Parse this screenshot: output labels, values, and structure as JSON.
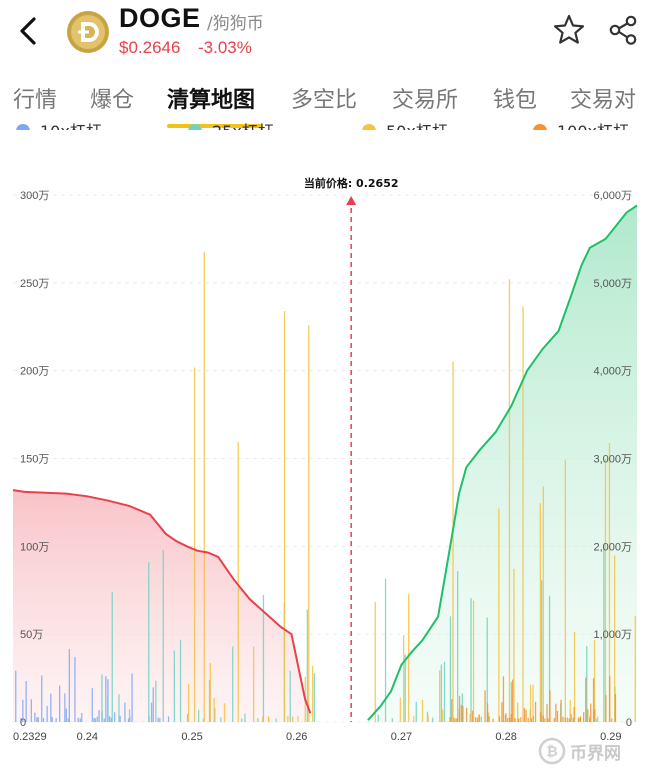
{
  "header": {
    "symbol": "DOGE",
    "subname": "/狗狗币",
    "price": "$0.2646",
    "change": "-3.03%"
  },
  "tabs": [
    {
      "label": "行情"
    },
    {
      "label": "爆仓"
    },
    {
      "label": "清算地图"
    },
    {
      "label": "多空比"
    },
    {
      "label": "交易所"
    },
    {
      "label": "钱包"
    },
    {
      "label": "交易对"
    }
  ],
  "legend": [
    {
      "label": "10x杠杆",
      "color": "#7fa8f3"
    },
    {
      "label": "25x杠杆",
      "color": "#6ed3c4"
    },
    {
      "label": "50x杠杆",
      "color": "#f5c243"
    },
    {
      "label": "100x杠杆",
      "color": "#f7922e"
    }
  ],
  "watermark": "币界网",
  "colors": {
    "down": "#e8404d",
    "long_curve": "#e8404d",
    "short_curve": "#1fbf6a",
    "price_line": "#e8404d"
  },
  "chart_data": {
    "type": "bar",
    "current_price_label": "当前价格: 0.2652",
    "current_price": 0.2652,
    "x_ticks": [
      "0.2329",
      "0.24",
      "0.25",
      "0.26",
      "0.27",
      "0.28",
      "0.29"
    ],
    "x_tick_values": [
      0.2329,
      0.24,
      0.25,
      0.26,
      0.27,
      0.28,
      0.29
    ],
    "xlim": [
      0.2329,
      0.2925
    ],
    "left_axis": {
      "ticks": [
        "0",
        "50万",
        "100万",
        "150万",
        "200万",
        "250万",
        "300万"
      ],
      "ylim": [
        0,
        3000000
      ]
    },
    "right_axis": {
      "ticks": [
        "0",
        "1,000万",
        "2,000万",
        "3,000万",
        "4,000万",
        "5,000万",
        "6,000万"
      ],
      "ylim": [
        0,
        60000000
      ]
    },
    "cumulative_long": {
      "x": [
        0.2329,
        0.234,
        0.236,
        0.238,
        0.24,
        0.242,
        0.244,
        0.246,
        0.2475,
        0.2485,
        0.2495,
        0.2505,
        0.2515,
        0.2525,
        0.254,
        0.2555,
        0.257,
        0.2585,
        0.2595,
        0.2603,
        0.2608,
        0.2613
      ],
      "values": [
        1320000,
        1310000,
        1305000,
        1300000,
        1285000,
        1260000,
        1230000,
        1180000,
        1070000,
        1030000,
        1000000,
        975000,
        965000,
        940000,
        810000,
        700000,
        620000,
        540000,
        500000,
        270000,
        130000,
        50000
      ]
    },
    "cumulative_short": {
      "x": [
        0.2668,
        0.268,
        0.269,
        0.27,
        0.271,
        0.272,
        0.2735,
        0.2748,
        0.2755,
        0.2762,
        0.2775,
        0.279,
        0.2805,
        0.282,
        0.2835,
        0.285,
        0.2862,
        0.2872,
        0.288,
        0.2895,
        0.2905,
        0.2915,
        0.2925
      ],
      "values": [
        200000,
        1800000,
        3500000,
        6500000,
        8000000,
        9300000,
        12000000,
        21000000,
        26000000,
        29000000,
        31000000,
        33000000,
        36000000,
        40000000,
        42500000,
        44500000,
        48500000,
        52000000,
        54000000,
        55000000,
        56500000,
        58000000,
        58800000
      ]
    },
    "bar_series": [
      {
        "name": "10x杠杆",
        "color": "#7fa8f3",
        "range": [
          0.2329,
          0.2478
        ],
        "scale": [
          20000,
          400000
        ]
      },
      {
        "name": "25x杠杆",
        "color": "#6ed3c4",
        "range": [
          0.2405,
          0.2925
        ],
        "scale": [
          20000,
          1000000
        ]
      },
      {
        "name": "50x杠杆",
        "color": "#f5c243",
        "range": [
          0.2495,
          0.2925
        ],
        "scale": [
          30000,
          2750000
        ]
      },
      {
        "name": "100x杠杆",
        "color": "#f7922e",
        "range": [
          0.2745,
          0.2905
        ],
        "scale": [
          20000,
          250000
        ]
      }
    ]
  }
}
